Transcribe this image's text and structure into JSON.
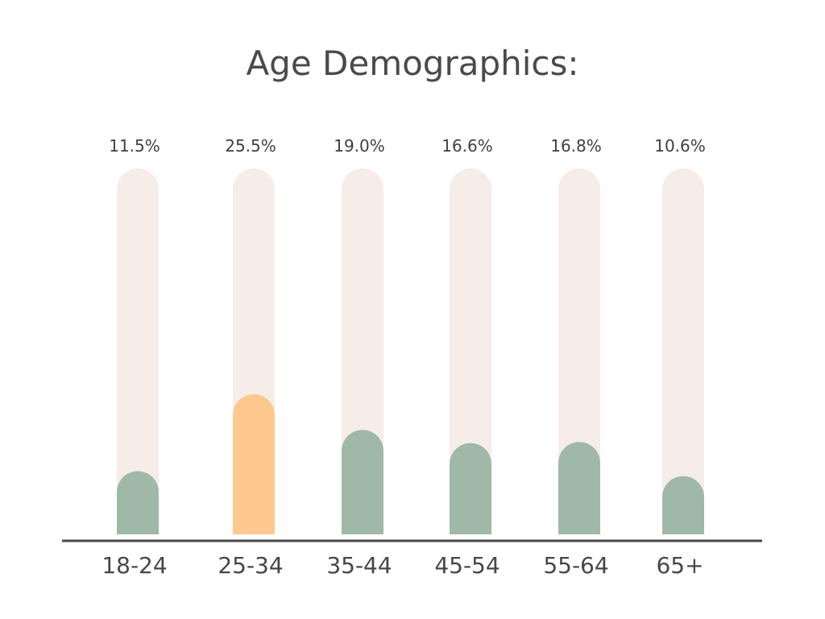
{
  "chart_data": {
    "type": "bar",
    "title": "Age Demographics:",
    "xlabel": "",
    "ylabel": "",
    "categories": [
      "18-24",
      "25-34",
      "35-44",
      "45-54",
      "55-64",
      "65+"
    ],
    "values": [
      11.5,
      25.5,
      19.0,
      16.6,
      16.8,
      10.6
    ],
    "value_labels": [
      "11.5%",
      "25.5%",
      "19.0%",
      "16.6%",
      "16.8%",
      "10.6%"
    ],
    "highlight_index": 1,
    "grid": false,
    "legend": "none",
    "colors": {
      "track": "#f6ece8",
      "bar": "#a0b8a8",
      "highlight": "#fec88f",
      "axis": "#4a4a4a"
    }
  }
}
